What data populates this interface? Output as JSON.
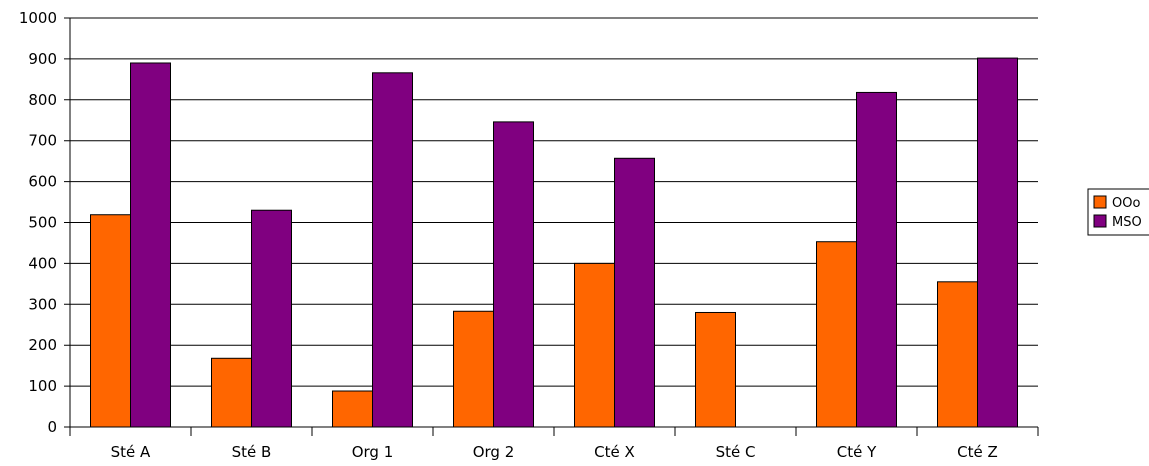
{
  "chart_data": {
    "type": "bar",
    "title": "",
    "xlabel": "",
    "ylabel": "",
    "categories": [
      "Sté A",
      "Sté B",
      "Org 1",
      "Org 2",
      "Cté X",
      "Sté C",
      "Cté Y",
      "Cté Z"
    ],
    "series": [
      {
        "name": "OOo",
        "color": "#ff6600",
        "values": [
          519,
          168,
          88,
          283,
          400,
          280,
          453,
          355
        ]
      },
      {
        "name": "MSO",
        "color": "#800080",
        "values": [
          890,
          530,
          866,
          746,
          657,
          0,
          818,
          902
        ]
      }
    ],
    "ylim": [
      0,
      1000
    ],
    "yticks": [
      0,
      100,
      200,
      300,
      400,
      500,
      600,
      700,
      800,
      900,
      1000
    ],
    "grid": true,
    "legend_position": "right"
  }
}
